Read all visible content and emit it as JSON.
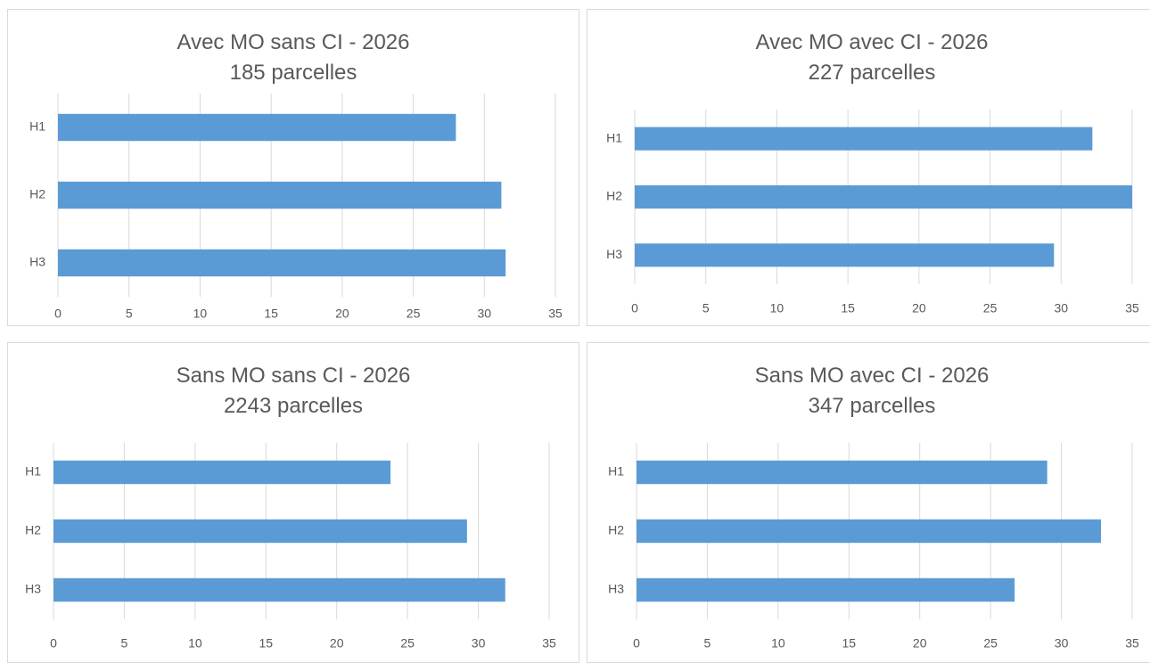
{
  "colors": {
    "bar": "#5b9bd5",
    "grid": "#d9d9d9",
    "text": "#595959"
  },
  "chart_data": [
    {
      "type": "bar",
      "orientation": "horizontal",
      "title": "Avec MO sans CI - 2026",
      "subtitle": "185 parcelles",
      "categories": [
        "H1",
        "H2",
        "H3"
      ],
      "values": [
        28.0,
        31.2,
        31.5
      ],
      "xlim": [
        0,
        35
      ],
      "xticks": [
        "0",
        "5",
        "10",
        "15",
        "20",
        "25",
        "30",
        "35"
      ],
      "grid": true,
      "legend": false
    },
    {
      "type": "bar",
      "orientation": "horizontal",
      "title": "Avec MO avec CI - 2026",
      "subtitle": "227 parcelles",
      "categories": [
        "H1",
        "H2",
        "H3"
      ],
      "values": [
        32.2,
        35.0,
        29.5
      ],
      "xlim": [
        0,
        35
      ],
      "xticks": [
        "0",
        "5",
        "10",
        "15",
        "20",
        "25",
        "30",
        "35"
      ],
      "grid": true,
      "legend": false
    },
    {
      "type": "bar",
      "orientation": "horizontal",
      "title": "Sans MO sans CI - 2026",
      "subtitle": "2243 parcelles",
      "categories": [
        "H1",
        "H2",
        "H3"
      ],
      "values": [
        23.8,
        29.2,
        31.9
      ],
      "xlim": [
        0,
        35
      ],
      "xticks": [
        "0",
        "5",
        "10",
        "15",
        "20",
        "25",
        "30",
        "35"
      ],
      "grid": true,
      "legend": false
    },
    {
      "type": "bar",
      "orientation": "horizontal",
      "title": "Sans MO avec CI - 2026",
      "subtitle": "347 parcelles",
      "categories": [
        "H1",
        "H2",
        "H3"
      ],
      "values": [
        29.0,
        32.8,
        26.7
      ],
      "xlim": [
        0,
        35
      ],
      "xticks": [
        "0",
        "5",
        "10",
        "15",
        "20",
        "25",
        "30",
        "35"
      ],
      "grid": true,
      "legend": false
    }
  ]
}
